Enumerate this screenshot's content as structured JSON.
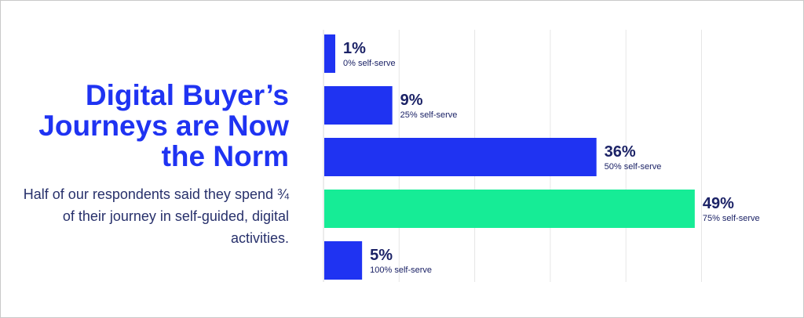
{
  "headline": "Digital Buyer’s Journeys are Now the Norm",
  "subtext": "Half of our respondents said they spend ¾ of their journey in self-guided, digital activities.",
  "colors": {
    "primary_bar": "#1f33f2",
    "highlight_bar": "#16ec96",
    "text_dark": "#1b2266",
    "grid": "#e6e6e6"
  },
  "chart_data": {
    "type": "bar",
    "orientation": "horizontal",
    "categories": [
      "0% self-serve",
      "25% self-serve",
      "50% self-serve",
      "75% self-serve",
      "100% self-serve"
    ],
    "values": [
      1,
      9,
      36,
      49,
      5
    ],
    "value_labels": [
      "1%",
      "9%",
      "36%",
      "49%",
      "5%"
    ],
    "highlight_index": 3,
    "xlim": [
      0,
      50
    ],
    "grid": true
  }
}
